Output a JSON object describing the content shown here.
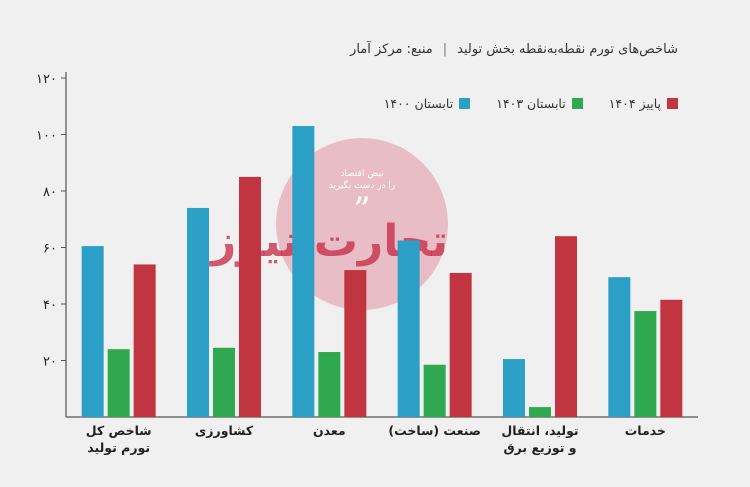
{
  "header": {
    "title": "شاخص‌های تورم نقطه‌به‌نقطه بخش تولید",
    "separator": "|",
    "source": "منبع: مرکز آمار"
  },
  "watermark": {
    "line1": "نبض اقتصاد",
    "line2": "را در دست بگیرید",
    "quote": "”",
    "logo": "تجارت نیوز"
  },
  "colors": {
    "summer1400": "#2b9fc6",
    "summer1403": "#2fa84f",
    "autumn1404": "#c0353f",
    "background": "#f0f0f0"
  },
  "chart_data": {
    "type": "bar",
    "title": "شاخص‌های تورم نقطه‌به‌نقطه بخش تولید",
    "categories": [
      [
        "شاخص کل",
        "تورم تولید"
      ],
      [
        "کشاورزی"
      ],
      [
        "معدن"
      ],
      [
        "صنعت (ساخت)"
      ],
      [
        "تولید، انتقال",
        "و توزیع برق"
      ],
      [
        "خدمات"
      ]
    ],
    "series": [
      {
        "name": "تابستان ۱۴۰۰",
        "color": "#2b9fc6",
        "values": [
          60.5,
          74,
          103,
          62.5,
          20.5,
          49.5
        ]
      },
      {
        "name": "تابستان ۱۴۰۳",
        "color": "#2fa84f",
        "values": [
          24,
          24.5,
          23,
          18.5,
          3.5,
          37.5
        ]
      },
      {
        "name": "پاییز ۱۴۰۴",
        "color": "#c0353f",
        "values": [
          54,
          85,
          52,
          51,
          64,
          41.5
        ]
      }
    ],
    "yticks": [
      "۲۰",
      "۴۰",
      "۶۰",
      "۸۰",
      "۱۰۰",
      "۱۲۰"
    ],
    "ytick_values": [
      20,
      40,
      60,
      80,
      100,
      120
    ],
    "ylim": [
      0,
      120
    ],
    "xlabel": "",
    "ylabel": "",
    "grid": false,
    "legend_position": "top-right"
  }
}
